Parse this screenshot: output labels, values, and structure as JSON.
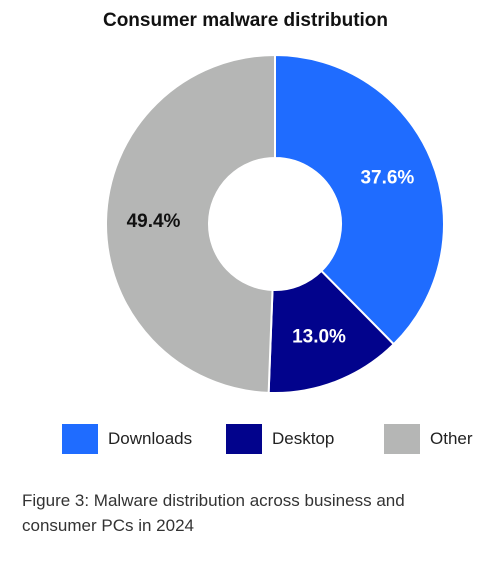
{
  "chart_data": {
    "type": "pie",
    "title": "Consumer malware distribution",
    "hole": true,
    "slices": [
      {
        "name": "Downloads",
        "value": 37.6,
        "label": "37.6%",
        "color": "#1f6cff",
        "label_color": "#ffffff"
      },
      {
        "name": "Desktop",
        "value": 13.0,
        "label": "13.0%",
        "color": "#02038c",
        "label_color": "#ffffff"
      },
      {
        "name": "Other",
        "value": 49.4,
        "label": "49.4%",
        "color": "#b5b6b5",
        "label_color": "#111111"
      }
    ],
    "legend_position": "bottom"
  },
  "legend": [
    {
      "label": "Downloads",
      "color": "#1f6cff"
    },
    {
      "label": "Desktop",
      "color": "#02038c"
    },
    {
      "label": "Other",
      "color": "#b5b6b5"
    }
  ],
  "caption": "Figure 3: Malware distribution across business and consumer PCs in 2024"
}
